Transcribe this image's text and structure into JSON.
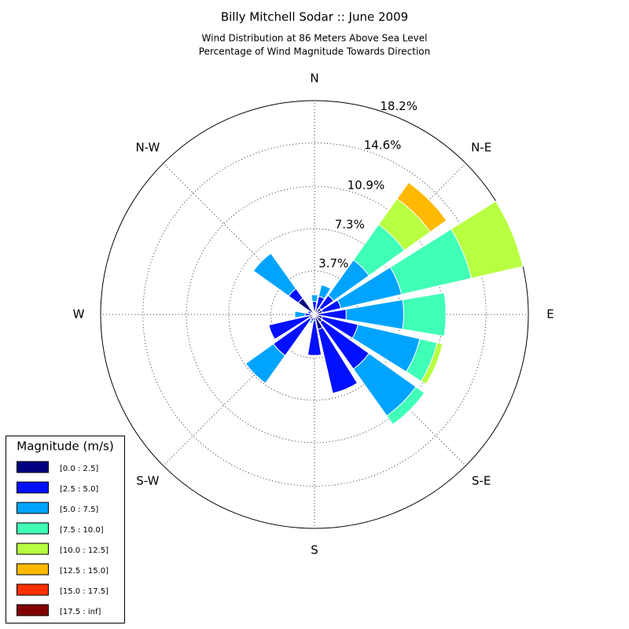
{
  "chart_data": {
    "type": "windrose",
    "title": "Billy Mitchell Sodar :: June 2009",
    "subtitle": [
      "Wind Distribution at 86 Meters Above Sea Level",
      "Percentage of Wind Magnitude Towards Direction"
    ],
    "direction_labels": [
      {
        "value": 0,
        "label": "N"
      },
      {
        "value": 45,
        "label": "N-E"
      },
      {
        "value": 90,
        "label": "E"
      },
      {
        "value": 135,
        "label": "S-E"
      },
      {
        "value": 180,
        "label": "S"
      },
      {
        "value": 225,
        "label": "S-W"
      },
      {
        "value": 270,
        "label": "W"
      },
      {
        "value": 315,
        "label": "N-W"
      }
    ],
    "directions": [
      0,
      22.5,
      45,
      67.5,
      90,
      112.5,
      135,
      157.5,
      180,
      202.5,
      225,
      247.5,
      270,
      292.5,
      315,
      337.5
    ],
    "rlim": [
      0,
      18.2
    ],
    "rticks": [
      {
        "value": 3.7,
        "label": "3.7%"
      },
      {
        "value": 7.3,
        "label": "7.3%"
      },
      {
        "value": 10.9,
        "label": "10.9%"
      },
      {
        "value": 14.6,
        "label": "14.6%"
      },
      {
        "value": 18.2,
        "label": "18.2%"
      }
    ],
    "legend_title": "Magnitude (m/s)",
    "series": [
      {
        "name": "[0.0 : 2.5]",
        "color": "#000080",
        "values": [
          0.3,
          0.5,
          0.7,
          0.7,
          0.3,
          0.7,
          0.8,
          1.3,
          0.5,
          0.3,
          0.5,
          0.5,
          0.3,
          0.3,
          1.7,
          0.3
        ]
      },
      {
        "name": "[2.5 : 5.0]",
        "color": "#0010ff",
        "values": [
          0.8,
          1.1,
          1.3,
          1.6,
          2.4,
          3.1,
          4.9,
          5.6,
          3.0,
          0.3,
          3.8,
          3.5,
          0.5,
          0.3,
          1.0,
          0
        ]
      },
      {
        "name": "[5.0 : 7.5]",
        "color": "#00a4ff",
        "values": [
          0.6,
          1.0,
          3.7,
          5.3,
          4.9,
          5.4,
          4.9,
          0,
          0,
          0.2,
          2.9,
          0,
          0.9,
          0,
          3.7,
          0
        ]
      },
      {
        "name": "[7.5 : 10.0]",
        "color": "#40ffb7",
        "values": [
          0,
          0,
          3.7,
          6.1,
          3.6,
          1.5,
          0.9,
          0,
          0,
          0,
          0,
          0,
          0,
          0,
          0,
          0
        ]
      },
      {
        "name": "[10.0 : 12.5]",
        "color": "#b7ff40",
        "values": [
          0,
          0,
          2.7,
          4.5,
          0,
          0.5,
          0,
          0,
          0,
          0,
          0,
          0,
          0,
          0,
          0,
          0
        ]
      },
      {
        "name": "[12.5 : 15.0]",
        "color": "#ffb900",
        "values": [
          0,
          0,
          1.7,
          0,
          0,
          0,
          0,
          0,
          0,
          0,
          0,
          0,
          0,
          0,
          0,
          0
        ]
      },
      {
        "name": "[15.0 : 17.5]",
        "color": "#ff3000",
        "values": [
          0,
          0,
          0,
          0,
          0,
          0,
          0,
          0,
          0,
          0,
          0,
          0,
          0,
          0,
          0,
          0
        ]
      },
      {
        "name": "[17.5 : inf]",
        "color": "#800000",
        "values": [
          0,
          0,
          0,
          0,
          0,
          0,
          0,
          0,
          0,
          0,
          0,
          0,
          0,
          0,
          0,
          0
        ]
      }
    ]
  }
}
